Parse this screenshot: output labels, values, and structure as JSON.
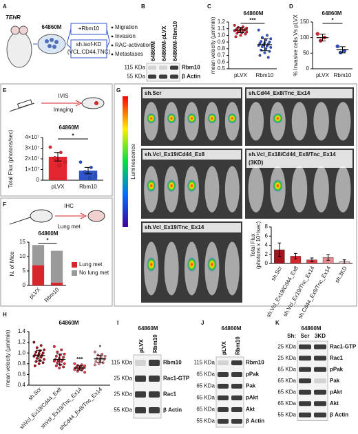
{
  "figure": {
    "A": {
      "letter": "A",
      "mouse": "TEHR",
      "cell_line": "64860M",
      "arms": [
        [
          "+Rbm10"
        ],
        [
          "sh.isof-KD",
          "(VCL,CD44,TNC)"
        ]
      ],
      "outcomes": [
        "Migration",
        "Invasion",
        "RAC-activation",
        "Metastases"
      ]
    },
    "B": {
      "letter": "B",
      "lanes": [
        "64860M",
        "64860M-pLVX",
        "64860M-Rbm10"
      ],
      "markers": [
        "115 KDa",
        "55 KDa"
      ],
      "bands": [
        "Rbm10",
        "β Actin"
      ]
    },
    "G": {
      "letter": "G",
      "scale_label": "Luminescence",
      "images": [
        [
          "sh.Scr"
        ],
        [
          "sh.Cd44_Ex8/Tnc_Ex14"
        ],
        [
          "sh.Vcl_Ex19/Cd44_Ex8"
        ],
        [
          "sh.Vcl_Ex18/Cd44_Ex8/Tnc_Ex14",
          "(3KD)"
        ],
        [
          "sh.Vcl_Ex19/Tnc_Ex14"
        ]
      ]
    },
    "I": {
      "letter": "I",
      "title": "64860M",
      "lanes": [
        "pLVX",
        "Rbm10"
      ],
      "markers": [
        "115 KDa",
        "25 KDa",
        "25 KDa",
        "55 KDa"
      ],
      "bands": [
        "Rbm10",
        "Rac1-GTP",
        "Rac1",
        "β Actin"
      ]
    },
    "J": {
      "letter": "J",
      "title": "64860M",
      "lanes": [
        "pLVX",
        "Rbm10"
      ],
      "markers": [
        "115 KDa",
        "65 KDa",
        "65 KDa",
        "65 KDa",
        "65 KDa",
        "55 KDa"
      ],
      "bands": [
        "Rbm10",
        "pPak",
        "Pak",
        "pAkt",
        "Akt",
        "β Actin"
      ]
    },
    "K": {
      "letter": "K",
      "title": "64860M",
      "lane_prefix": "Sh:",
      "lanes": [
        "Scr",
        "3KD"
      ],
      "markers": [
        "25 KDa",
        "25 KDa",
        "65 KDa",
        "65 KDa",
        "65 KDa",
        "65 KDa",
        "55 KDa"
      ],
      "bands": [
        "Rac1-GTP",
        "Rac1",
        "pPak",
        "Pak",
        "pAkt",
        "Akt",
        "β Actin"
      ]
    }
  },
  "chart_data": [
    {
      "type": "dotplot",
      "panel": "C",
      "title": "64860M",
      "ylabel": [
        "mean velocity (µm/min)"
      ],
      "categories": [
        "pLVX",
        "Rbm10"
      ],
      "colors": [
        "#e3262f",
        "#2f56c9"
      ],
      "points": [
        [
          1.15,
          1.13,
          1.12,
          1.11,
          1.1,
          1.1,
          1.09,
          1.09,
          1.08,
          1.08,
          1.07,
          1.07,
          1.06,
          1.06,
          1.05,
          1.04,
          1.03,
          1.02,
          1.0,
          0.98
        ],
        [
          1.08,
          1.0,
          0.97,
          0.95,
          0.93,
          0.91,
          0.9,
          0.89,
          0.88,
          0.87,
          0.86,
          0.85,
          0.84,
          0.83,
          0.82,
          0.8,
          0.78,
          0.76,
          0.74,
          0.7,
          0.67
        ]
      ],
      "means": [
        1.08,
        0.86
      ],
      "errors": [
        0.04,
        0.09
      ],
      "significance": "***",
      "ylim": [
        0.5,
        1.2
      ],
      "yticks": [
        0.5,
        0.6,
        0.7,
        0.8,
        0.9,
        {
          "value": 1,
          "label": "1.0"
        },
        1.1,
        1.2
      ]
    },
    {
      "type": "dotplot",
      "panel": "D",
      "title": "64860M",
      "ylabel": [
        "% Invasive cells Vs pLVX"
      ],
      "categories": [
        "pLVX",
        "Rbm10"
      ],
      "colors": [
        "#e3262f",
        "#2f56c9"
      ],
      "points": [
        [
          112,
          100,
          90
        ],
        [
          72,
          58,
          52
        ]
      ],
      "means": [
        100,
        61
      ],
      "errors": [
        11,
        10
      ],
      "significance": "*",
      "ylim": [
        0,
        150
      ],
      "yticks": [
        0,
        50,
        100,
        150
      ]
    },
    {
      "type": "bar_dots",
      "panel": "E",
      "diagram": [
        "IVIS",
        "Imaging"
      ],
      "title": "64860M",
      "ylabel": [
        "Total  Flux (photons/sec)"
      ],
      "categories": [
        "pLVX",
        "Rbm10"
      ],
      "colors": [
        "#e3262f",
        "#2f56c9"
      ],
      "values": [
        22000000,
        9000000
      ],
      "errors": [
        4000000,
        3000000
      ],
      "points": [
        [
          31000000,
          26000000,
          21000000,
          17000000,
          14000000
        ],
        [
          17000000,
          12000000,
          8000000,
          4000000,
          2000000
        ]
      ],
      "significance": "*",
      "ylim": [
        0,
        40000000
      ],
      "yticks": [
        0,
        {
          "value": 10000000,
          "label": "1×10⁷"
        },
        {
          "value": 20000000,
          "label": "2×10⁷"
        },
        {
          "value": 30000000,
          "label": "3×10⁷"
        },
        {
          "value": 40000000,
          "label": "4×10⁷"
        }
      ]
    },
    {
      "type": "stacked_bar",
      "panel": "F",
      "diagram": [
        "IHC",
        "Lung met"
      ],
      "title": "64860M",
      "ylabel": [
        "N. of Mice"
      ],
      "categories": [
        "pLVX",
        "Rbm10"
      ],
      "series": [
        {
          "name": "Lung met",
          "color": "#d7262b",
          "values": [
            7,
            1
          ]
        },
        {
          "name": "No lung met",
          "color": "#9a9a9a",
          "values": [
            7,
            11
          ]
        }
      ],
      "significance": "*",
      "ylim": [
        0,
        15
      ],
      "yticks": [
        0,
        5,
        10,
        15
      ]
    },
    {
      "type": "bar",
      "ylabel": [
        "Total  Flux",
        "(photons x 10⁹/sec)"
      ],
      "categories": [
        "sh.Scr",
        "sh.Vcl_Ex19/Cd44_Ex8",
        "sh.Vcl_Ex19/Tnc_Ex14",
        "sh.Cd44_Ex8/Tnc_Ex14",
        "sh.3KD"
      ],
      "colors": [
        "#a3151f",
        "#d7262b",
        "#e23a44",
        "#e58a8f",
        "#f0c4c6"
      ],
      "values": [
        3.0,
        1.6,
        0.8,
        1.3,
        0.4
      ],
      "errors": [
        1.5,
        0.6,
        0.4,
        0.6,
        0.4
      ],
      "ylim": [
        0,
        8
      ],
      "yticks": [
        0,
        2,
        4,
        6,
        8
      ]
    },
    {
      "type": "dotplot",
      "panel": "H",
      "title": "64860M",
      "ylabel": [
        "mean velocity (µm/min)"
      ],
      "categories": [
        "sh.Scr",
        "shVcl_Ex19/Cd44_Ex8",
        "shVcl_Ex19/Tnc_Ex14",
        "shCd44_Ex8/Tnc_Ex14"
      ],
      "colors": [
        "#b0101e",
        "#d7263a",
        "#e9424f",
        "#e07c84"
      ],
      "points": [
        [
          1.2,
          1.14,
          1.1,
          1.06,
          1.04,
          1.02,
          1.0,
          0.99,
          0.97,
          0.96,
          0.95,
          0.94,
          0.92,
          0.9,
          0.88,
          0.86,
          0.84,
          0.82,
          0.8,
          0.76
        ],
        [
          1.12,
          1.06,
          1.02,
          0.98,
          0.96,
          0.94,
          0.92,
          0.9,
          0.88,
          0.87,
          0.86,
          0.85,
          0.84,
          0.82,
          0.8,
          0.78,
          0.76,
          0.74,
          0.72
        ],
        [
          0.8,
          0.78,
          0.77,
          0.76,
          0.75,
          0.74,
          0.73,
          0.72,
          0.72,
          0.71,
          0.7,
          0.69,
          0.68,
          0.66,
          0.64
        ],
        [
          1.02,
          0.98,
          0.96,
          0.94,
          0.92,
          0.9,
          0.88,
          0.86,
          0.84,
          0.82,
          0.8,
          0.78
        ]
      ],
      "means": [
        0.95,
        0.88,
        0.72,
        0.89
      ],
      "errors": [
        0.1,
        0.1,
        0.04,
        0.07
      ],
      "significance": [
        {
          "group": 2,
          "text": "***"
        },
        {
          "group": 3,
          "text": "*"
        }
      ],
      "ylim": [
        0.4,
        1.4
      ],
      "yticks": [
        0.4,
        0.6,
        0.8,
        {
          "value": 1,
          "label": "1.0"
        },
        1.2,
        1.4
      ]
    }
  ]
}
